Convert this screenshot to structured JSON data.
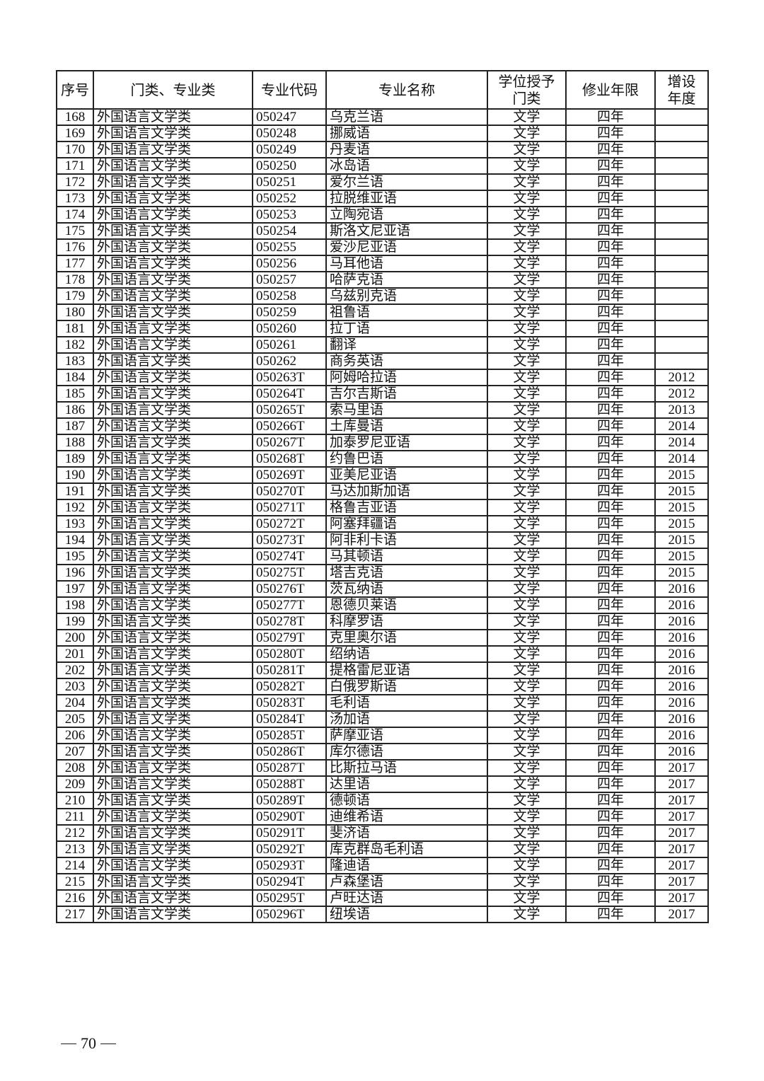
{
  "table": {
    "header": [
      "序号",
      "门类、专业类",
      "专业代码",
      "专业名称",
      "学位授予门类",
      "修业年限",
      "增设年度"
    ],
    "rows": [
      [
        168,
        "外国语言文学类",
        "050247",
        "乌克兰语",
        "文学",
        "四年",
        null
      ],
      [
        169,
        "外国语言文学类",
        "050248",
        "挪威语",
        "文学",
        "四年",
        null
      ],
      [
        170,
        "外国语言文学类",
        "050249",
        "丹麦语",
        "文学",
        "四年",
        null
      ],
      [
        171,
        "外国语言文学类",
        "050250",
        "冰岛语",
        "文学",
        "四年",
        null
      ],
      [
        172,
        "外国语言文学类",
        "050251",
        "爱尔兰语",
        "文学",
        "四年",
        null
      ],
      [
        173,
        "外国语言文学类",
        "050252",
        "拉脱维亚语",
        "文学",
        "四年",
        null
      ],
      [
        174,
        "外国语言文学类",
        "050253",
        "立陶宛语",
        "文学",
        "四年",
        null
      ],
      [
        175,
        "外国语言文学类",
        "050254",
        "斯洛文尼亚语",
        "文学",
        "四年",
        null
      ],
      [
        176,
        "外国语言文学类",
        "050255",
        "爱沙尼亚语",
        "文学",
        "四年",
        null
      ],
      [
        177,
        "外国语言文学类",
        "050256",
        "马耳他语",
        "文学",
        "四年",
        null
      ],
      [
        178,
        "外国语言文学类",
        "050257",
        "哈萨克语",
        "文学",
        "四年",
        null
      ],
      [
        179,
        "外国语言文学类",
        "050258",
        "乌兹别克语",
        "文学",
        "四年",
        null
      ],
      [
        180,
        "外国语言文学类",
        "050259",
        "祖鲁语",
        "文学",
        "四年",
        null
      ],
      [
        181,
        "外国语言文学类",
        "050260",
        "拉丁语",
        "文学",
        "四年",
        null
      ],
      [
        182,
        "外国语言文学类",
        "050261",
        "翻译",
        "文学",
        "四年",
        null
      ],
      [
        183,
        "外国语言文学类",
        "050262",
        "商务英语",
        "文学",
        "四年",
        null
      ],
      [
        184,
        "外国语言文学类",
        "050263T",
        "阿姆哈拉语",
        "文学",
        "四年",
        2012
      ],
      [
        185,
        "外国语言文学类",
        "050264T",
        "吉尔吉斯语",
        "文学",
        "四年",
        2012
      ],
      [
        186,
        "外国语言文学类",
        "050265T",
        "索马里语",
        "文学",
        "四年",
        2013
      ],
      [
        187,
        "外国语言文学类",
        "050266T",
        "土库曼语",
        "文学",
        "四年",
        2014
      ],
      [
        188,
        "外国语言文学类",
        "050267T",
        "加泰罗尼亚语",
        "文学",
        "四年",
        2014
      ],
      [
        189,
        "外国语言文学类",
        "050268T",
        "约鲁巴语",
        "文学",
        "四年",
        2014
      ],
      [
        190,
        "外国语言文学类",
        "050269T",
        "亚美尼亚语",
        "文学",
        "四年",
        2015
      ],
      [
        191,
        "外国语言文学类",
        "050270T",
        "马达加斯加语",
        "文学",
        "四年",
        2015
      ],
      [
        192,
        "外国语言文学类",
        "050271T",
        "格鲁吉亚语",
        "文学",
        "四年",
        2015
      ],
      [
        193,
        "外国语言文学类",
        "050272T",
        "阿塞拜疆语",
        "文学",
        "四年",
        2015
      ],
      [
        194,
        "外国语言文学类",
        "050273T",
        "阿非利卡语",
        "文学",
        "四年",
        2015
      ],
      [
        195,
        "外国语言文学类",
        "050274T",
        "马其顿语",
        "文学",
        "四年",
        2015
      ],
      [
        196,
        "外国语言文学类",
        "050275T",
        "塔吉克语",
        "文学",
        "四年",
        2015
      ],
      [
        197,
        "外国语言文学类",
        "050276T",
        "茨瓦纳语",
        "文学",
        "四年",
        2016
      ],
      [
        198,
        "外国语言文学类",
        "050277T",
        "恩德贝莱语",
        "文学",
        "四年",
        2016
      ],
      [
        199,
        "外国语言文学类",
        "050278T",
        "科摩罗语",
        "文学",
        "四年",
        2016
      ],
      [
        200,
        "外国语言文学类",
        "050279T",
        "克里奥尔语",
        "文学",
        "四年",
        2016
      ],
      [
        201,
        "外国语言文学类",
        "050280T",
        "绍纳语",
        "文学",
        "四年",
        2016
      ],
      [
        202,
        "外国语言文学类",
        "050281T",
        "提格雷尼亚语",
        "文学",
        "四年",
        2016
      ],
      [
        203,
        "外国语言文学类",
        "050282T",
        "白俄罗斯语",
        "文学",
        "四年",
        2016
      ],
      [
        204,
        "外国语言文学类",
        "050283T",
        "毛利语",
        "文学",
        "四年",
        2016
      ],
      [
        205,
        "外国语言文学类",
        "050284T",
        "汤加语",
        "文学",
        "四年",
        2016
      ],
      [
        206,
        "外国语言文学类",
        "050285T",
        "萨摩亚语",
        "文学",
        "四年",
        2016
      ],
      [
        207,
        "外国语言文学类",
        "050286T",
        "库尔德语",
        "文学",
        "四年",
        2016
      ],
      [
        208,
        "外国语言文学类",
        "050287T",
        "比斯拉马语",
        "文学",
        "四年",
        2017
      ],
      [
        209,
        "外国语言文学类",
        "050288T",
        "达里语",
        "文学",
        "四年",
        2017
      ],
      [
        210,
        "外国语言文学类",
        "050289T",
        "德顿语",
        "文学",
        "四年",
        2017
      ],
      [
        211,
        "外国语言文学类",
        "050290T",
        "迪维希语",
        "文学",
        "四年",
        2017
      ],
      [
        212,
        "外国语言文学类",
        "050291T",
        "斐济语",
        "文学",
        "四年",
        2017
      ],
      [
        213,
        "外国语言文学类",
        "050292T",
        "库克群岛毛利语",
        "文学",
        "四年",
        2017
      ],
      [
        214,
        "外国语言文学类",
        "050293T",
        "隆迪语",
        "文学",
        "四年",
        2017
      ],
      [
        215,
        "外国语言文学类",
        "050294T",
        "卢森堡语",
        "文学",
        "四年",
        2017
      ],
      [
        216,
        "外国语言文学类",
        "050295T",
        "卢旺达语",
        "文学",
        "四年",
        2017
      ],
      [
        217,
        "外国语言文学类",
        "050296T",
        "纽埃语",
        "文学",
        "四年",
        2017
      ]
    ]
  },
  "footer": {
    "page_number": "70"
  }
}
